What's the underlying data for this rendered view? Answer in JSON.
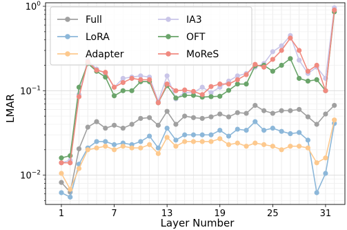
{
  "chart_data": {
    "type": "line",
    "xlabel": "Layer Number",
    "ylabel": "LMAR",
    "yscale": "log",
    "ylim": [
      0.0045,
      1.1
    ],
    "xlim": [
      -0.8,
      33.2
    ],
    "x_ticks": [
      1,
      7,
      13,
      19,
      25,
      31
    ],
    "y_ticks": [
      {
        "value": 0.01,
        "base": "10",
        "exp": "−2"
      },
      {
        "value": 0.1,
        "base": "10",
        "exp": "−1"
      },
      {
        "value": 1,
        "base": "10",
        "exp": "0"
      }
    ],
    "grid": true,
    "legend_position": "top-left",
    "x": [
      1,
      2,
      3,
      4,
      5,
      6,
      7,
      8,
      9,
      10,
      11,
      12,
      13,
      14,
      15,
      16,
      17,
      18,
      19,
      20,
      21,
      22,
      23,
      24,
      25,
      26,
      27,
      28,
      29,
      30,
      31,
      32
    ],
    "series": [
      {
        "name": "Full",
        "color": "#a0a0a0",
        "values": [
          0.0082,
          0.0063,
          0.0205,
          0.037,
          0.043,
          0.036,
          0.039,
          0.036,
          0.04,
          0.047,
          0.048,
          0.039,
          0.057,
          0.04,
          0.05,
          0.048,
          0.047,
          0.049,
          0.053,
          0.049,
          0.055,
          0.054,
          0.067,
          0.058,
          0.054,
          0.058,
          0.058,
          0.06,
          0.049,
          0.04,
          0.053,
          0.067
        ]
      },
      {
        "name": "LoRA",
        "color": "#8cb7d9",
        "values": [
          0.0062,
          0.0055,
          0.0135,
          0.021,
          0.025,
          0.025,
          0.023,
          0.024,
          0.023,
          0.025,
          0.029,
          0.021,
          0.036,
          0.026,
          0.03,
          0.03,
          0.03,
          0.03,
          0.034,
          0.029,
          0.035,
          0.034,
          0.043,
          0.034,
          0.036,
          0.033,
          0.031,
          0.032,
          0.026,
          0.0062,
          0.0105,
          0.041
        ]
      },
      {
        "name": "Adapter",
        "color": "#fdc98e",
        "values": [
          0.0105,
          0.0068,
          0.012,
          0.02,
          0.021,
          0.022,
          0.02,
          0.022,
          0.021,
          0.021,
          0.023,
          0.018,
          0.028,
          0.022,
          0.025,
          0.025,
          0.025,
          0.025,
          0.027,
          0.023,
          0.024,
          0.022,
          0.024,
          0.023,
          0.022,
          0.02,
          0.022,
          0.022,
          0.021,
          0.014,
          0.016,
          0.045
        ]
      },
      {
        "name": "IA3",
        "color": "#c9c5e8",
        "values": [
          0.014,
          0.015,
          0.09,
          0.23,
          0.18,
          0.16,
          0.11,
          0.14,
          0.145,
          0.15,
          0.145,
          0.075,
          0.15,
          0.08,
          0.095,
          0.095,
          0.11,
          0.095,
          0.11,
          0.13,
          0.15,
          0.16,
          0.19,
          0.21,
          0.29,
          0.34,
          0.45,
          0.23,
          0.16,
          0.19,
          0.14,
          0.96
        ]
      },
      {
        "name": "OFT",
        "color": "#6aa46a",
        "values": [
          0.016,
          0.017,
          0.11,
          0.21,
          0.17,
          0.145,
          0.087,
          0.1,
          0.1,
          0.128,
          0.128,
          0.072,
          0.115,
          0.082,
          0.088,
          0.088,
          0.084,
          0.085,
          0.086,
          0.101,
          0.12,
          0.12,
          0.197,
          0.2,
          0.17,
          0.2,
          0.24,
          0.14,
          0.13,
          0.135,
          0.1,
          0.86
        ]
      },
      {
        "name": "MoReS",
        "color": "#f08a80",
        "values": [
          0.014,
          0.014,
          0.085,
          0.22,
          0.175,
          0.165,
          0.11,
          0.125,
          0.14,
          0.135,
          0.135,
          0.072,
          0.12,
          0.1,
          0.102,
          0.098,
          0.09,
          0.112,
          0.12,
          0.12,
          0.135,
          0.155,
          0.205,
          0.19,
          0.235,
          0.3,
          0.42,
          0.3,
          0.17,
          0.2,
          0.1,
          0.9
        ]
      }
    ]
  }
}
